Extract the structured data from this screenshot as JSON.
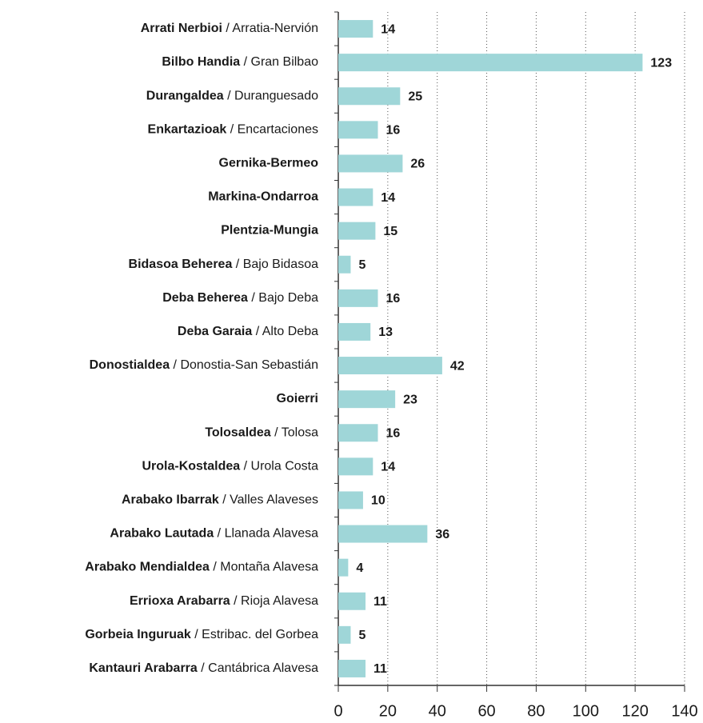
{
  "chart_data": {
    "type": "bar",
    "orientation": "horizontal",
    "categories": [
      "Arrati Nerbioi",
      "Bilbo Handia",
      "Durangaldea",
      "Enkartazioak",
      "Gernika-Bermeo",
      "Markina-Ondarroa",
      "Plentzia-Mungia",
      "Bidasoa Beherea",
      "Deba Beherea",
      "Deba Garaia",
      "Donostialdea",
      "Goierri",
      "Tolosaldea",
      "Urola-Kostaldea",
      "Arabako Ibarrak",
      "Arabako Lautada",
      "Arabako Mendialdea",
      "Errioxa Arabarra",
      "Gorbeia Inguruak",
      "Kantauri Arabarra"
    ],
    "category_translations": [
      "Arratia-Nervión",
      "Gran Bilbao",
      "Duranguesado",
      "Encartaciones",
      null,
      null,
      null,
      "Bajo Bidasoa",
      "Bajo Deba",
      "Alto Deba",
      "Donostia-San Sebastián",
      null,
      "Tolosa",
      "Urola Costa",
      "Valles Alaveses",
      "Llanada Alavesa",
      "Montaña Alavesa",
      "Rioja Alavesa",
      "Estribac. del Gorbea",
      "Cantábrica Alavesa"
    ],
    "values": [
      14,
      123,
      25,
      16,
      26,
      14,
      15,
      5,
      16,
      13,
      42,
      23,
      16,
      14,
      10,
      36,
      4,
      11,
      5,
      11
    ],
    "color": "#9fd6d8",
    "xlim": [
      0,
      140
    ],
    "xticks": [
      0,
      20,
      40,
      60,
      80,
      100,
      120,
      140
    ],
    "grid": true
  }
}
